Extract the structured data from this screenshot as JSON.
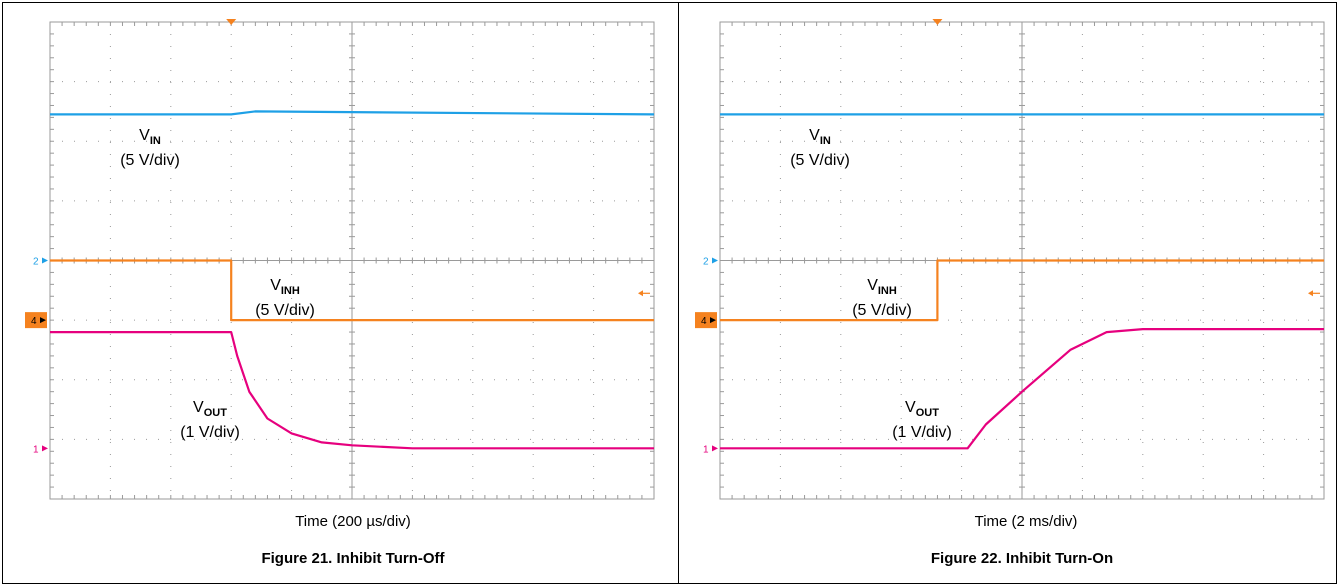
{
  "charts": [
    {
      "xlabel": "Time (200 µs/div)",
      "caption": "Figure 21. Inhibit Turn-Off",
      "labels": {
        "vin": {
          "main": "V",
          "sub": "IN",
          "scale": "(5 V/div)"
        },
        "vinh": {
          "main": "V",
          "sub": "INH",
          "scale": "(5 V/div)"
        },
        "vout": {
          "main": "V",
          "sub": "OUT",
          "scale": "(1 V/div)"
        }
      },
      "markers": {
        "ch2": "2",
        "ch4": "4",
        "ch1": "1"
      }
    },
    {
      "xlabel": "Time (2 ms/div)",
      "caption": "Figure 22. Inhibit Turn-On",
      "labels": {
        "vin": {
          "main": "V",
          "sub": "IN",
          "scale": "(5 V/div)"
        },
        "vinh": {
          "main": "V",
          "sub": "INH",
          "scale": "(5 V/div)"
        },
        "vout": {
          "main": "V",
          "sub": "OUT",
          "scale": "(1 V/div)"
        }
      },
      "markers": {
        "ch2": "2",
        "ch4": "4",
        "ch1": "1"
      }
    }
  ],
  "colors": {
    "vin": "#1ea0e6",
    "vinh": "#f5821f",
    "vout": "#e6007e",
    "grid": "#9a9a9a"
  },
  "chart_data": [
    {
      "type": "line",
      "x_unit": "div",
      "xlim": [
        0,
        10
      ],
      "ylim": [
        -4,
        4
      ],
      "xlabel": "Time (200 µs/div)",
      "series": [
        {
          "name": "VIN (5 V/div)",
          "x": [
            0,
            3,
            3.4,
            10
          ],
          "y": [
            2.45,
            2.45,
            2.5,
            2.45
          ]
        },
        {
          "name": "VINH (5 V/div)",
          "x": [
            0,
            3,
            3,
            10
          ],
          "y": [
            0.0,
            0.0,
            -1.0,
            -1.0
          ]
        },
        {
          "name": "VOUT (1 V/div)",
          "x": [
            0,
            3,
            3.1,
            3.3,
            3.6,
            4.0,
            4.5,
            5.0,
            6.0,
            10
          ],
          "y": [
            -1.2,
            -1.2,
            -1.6,
            -2.2,
            -2.65,
            -2.9,
            -3.05,
            -3.1,
            -3.15,
            -3.15
          ]
        }
      ]
    },
    {
      "type": "line",
      "x_unit": "div",
      "xlim": [
        0,
        10
      ],
      "ylim": [
        -4,
        4
      ],
      "xlabel": "Time (2 ms/div)",
      "series": [
        {
          "name": "VIN (5 V/div)",
          "x": [
            0,
            10
          ],
          "y": [
            2.45,
            2.45
          ]
        },
        {
          "name": "VINH (5 V/div)",
          "x": [
            0,
            3.6,
            3.6,
            10
          ],
          "y": [
            -1.0,
            -1.0,
            0.0,
            0.0
          ]
        },
        {
          "name": "VOUT (1 V/div)",
          "x": [
            0,
            4.1,
            4.4,
            5.0,
            5.8,
            6.4,
            7.0,
            10
          ],
          "y": [
            -3.15,
            -3.15,
            -2.75,
            -2.2,
            -1.5,
            -1.2,
            -1.15,
            -1.15
          ]
        }
      ]
    }
  ]
}
